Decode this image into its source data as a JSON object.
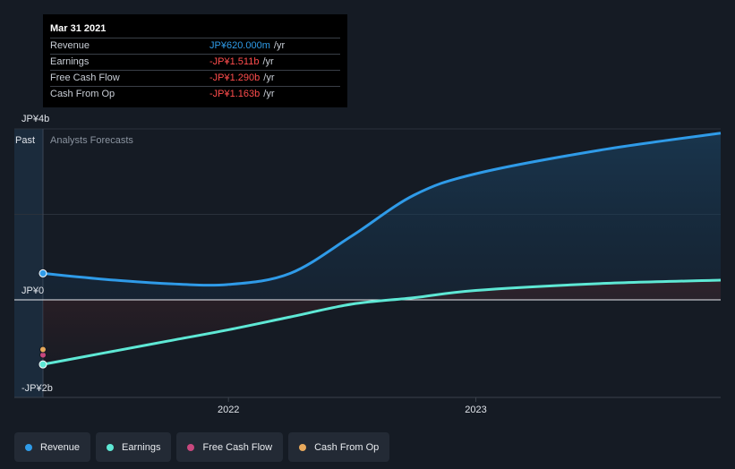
{
  "tooltip": {
    "date": "Mar 31 2021",
    "rows": [
      {
        "label": "Revenue",
        "value": "JP¥620.000m",
        "unit": "/yr"
      },
      {
        "label": "Earnings",
        "value": "-JP¥1.511b",
        "unit": "/yr"
      },
      {
        "label": "Free Cash Flow",
        "value": "-JP¥1.290b",
        "unit": "/yr"
      },
      {
        "label": "Cash From Op",
        "value": "-JP¥1.163b",
        "unit": "/yr"
      }
    ]
  },
  "regions": {
    "past": "Past",
    "forecast": "Analysts Forecasts"
  },
  "legend": [
    {
      "label": "Revenue",
      "color": "#2f9be8"
    },
    {
      "label": "Earnings",
      "color": "#5ee8d5"
    },
    {
      "label": "Free Cash Flow",
      "color": "#c8487e"
    },
    {
      "label": "Cash From Op",
      "color": "#e8a95c"
    }
  ],
  "chart_data": {
    "type": "line",
    "y_tick_labels": [
      "JP¥4b",
      "JP¥0",
      "-JP¥2b"
    ],
    "x_tick_labels": [
      "2022",
      "2023"
    ],
    "ylim": [
      -2,
      4
    ],
    "xlim": [
      2021.25,
      2023.99
    ],
    "grid": true,
    "series": [
      {
        "name": "Revenue",
        "color": "#2f9be8",
        "x": [
          2021.25,
          2021.5,
          2021.75,
          2022.0,
          2022.25,
          2022.5,
          2022.75,
          2023.0,
          2023.5,
          2023.99
        ],
        "y": [
          0.62,
          0.48,
          0.38,
          0.36,
          0.62,
          1.5,
          2.45,
          2.95,
          3.5,
          3.9
        ]
      },
      {
        "name": "Earnings",
        "color": "#5ee8d5",
        "x": [
          2021.25,
          2021.5,
          2021.75,
          2022.0,
          2022.25,
          2022.5,
          2022.75,
          2023.0,
          2023.5,
          2023.99
        ],
        "y": [
          -1.511,
          -1.24,
          -0.97,
          -0.7,
          -0.4,
          -0.1,
          0.05,
          0.22,
          0.38,
          0.46
        ]
      }
    ],
    "points": [
      {
        "name": "Free Cash Flow",
        "x": 2021.25,
        "y": -1.29,
        "color": "#c8487e"
      },
      {
        "name": "Cash From Op",
        "x": 2021.25,
        "y": -1.163,
        "color": "#e8a95c"
      }
    ]
  }
}
